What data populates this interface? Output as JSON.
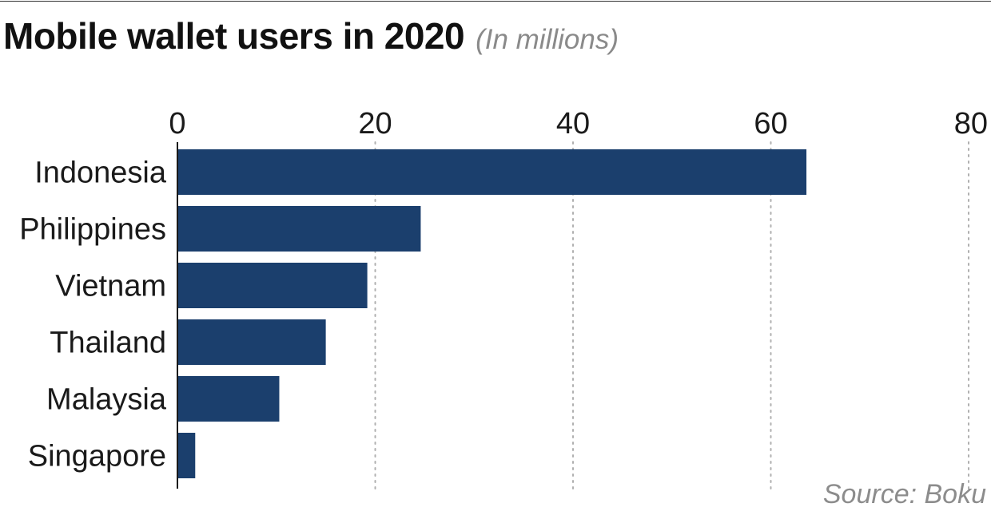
{
  "header": {
    "title": "Mobile wallet users in 2020",
    "subtitle": "(In millions)"
  },
  "footer": {
    "source": "Source: Boku"
  },
  "colors": {
    "bar": "#1b3f6d",
    "grid": "#b0b0b0",
    "axis": "#1a1a1a"
  },
  "chart_data": {
    "type": "bar",
    "orientation": "horizontal",
    "title": "Mobile wallet users in 2020",
    "subtitle": "(In millions)",
    "categories": [
      "Indonesia",
      "Philippines",
      "Vietnam",
      "Thailand",
      "Malaysia",
      "Singapore"
    ],
    "values": [
      63.6,
      24.6,
      19.2,
      15,
      10.3,
      1.8
    ],
    "xlim": [
      0,
      80
    ],
    "xticks": [
      "0",
      "20",
      "40",
      "60",
      "80"
    ],
    "xtick_values": [
      0,
      20,
      40,
      60,
      80
    ],
    "grid": "vertical dotted",
    "legend": "none"
  }
}
